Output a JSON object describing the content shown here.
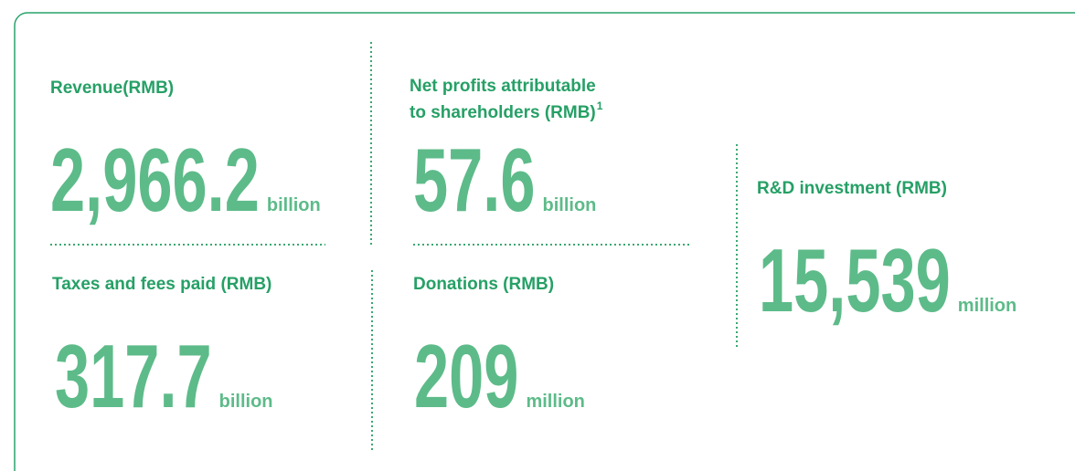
{
  "metrics": [
    {
      "label": [
        "Revenue(RMB)"
      ],
      "value": "2,966.2",
      "unit": "billion"
    },
    {
      "label": [
        "Net profits attributable",
        "to shareholders (RMB)"
      ],
      "footnote": "1",
      "value": "57.6",
      "unit": "billion"
    },
    {
      "label": [
        "Taxes and fees paid (RMB)"
      ],
      "value": "317.7",
      "unit": "billion"
    },
    {
      "label": [
        "Donations (RMB)"
      ],
      "value": "209",
      "unit": "million"
    },
    {
      "label": [
        "R&D investment (RMB)"
      ],
      "value": "15,539",
      "unit": "million"
    }
  ]
}
